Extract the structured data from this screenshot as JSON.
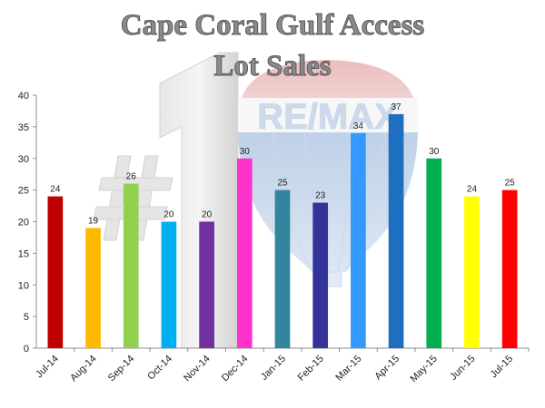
{
  "chart_data": {
    "type": "bar",
    "title_lines": [
      "Cape Coral Gulf Access",
      "Lot Sales"
    ],
    "categories": [
      "Jul-14",
      "Aug-14",
      "Sep-14",
      "Oct-14",
      "Nov-14",
      "Dec-14",
      "Jan-15",
      "Feb-15",
      "Mar-15",
      "Apr-15",
      "May-15",
      "Jun-15",
      "Jul-15"
    ],
    "values": [
      24,
      19,
      26,
      20,
      20,
      30,
      25,
      23,
      34,
      37,
      30,
      24,
      25
    ],
    "colors": [
      "#c00000",
      "#ffb800",
      "#92d050",
      "#00b0f0",
      "#7030a0",
      "#ff33cc",
      "#31859c",
      "#333399",
      "#3399ff",
      "#1f6fc0",
      "#00b050",
      "#ffff00",
      "#ff0000"
    ],
    "ylim": [
      0,
      40
    ],
    "yticks": [
      0,
      5,
      10,
      15,
      20,
      25,
      30,
      35,
      40
    ],
    "xlabel": "",
    "ylabel": "",
    "grid": false,
    "legend": "none"
  },
  "background": {
    "logo_text": "RE/MAX",
    "badge_text": "#1"
  }
}
